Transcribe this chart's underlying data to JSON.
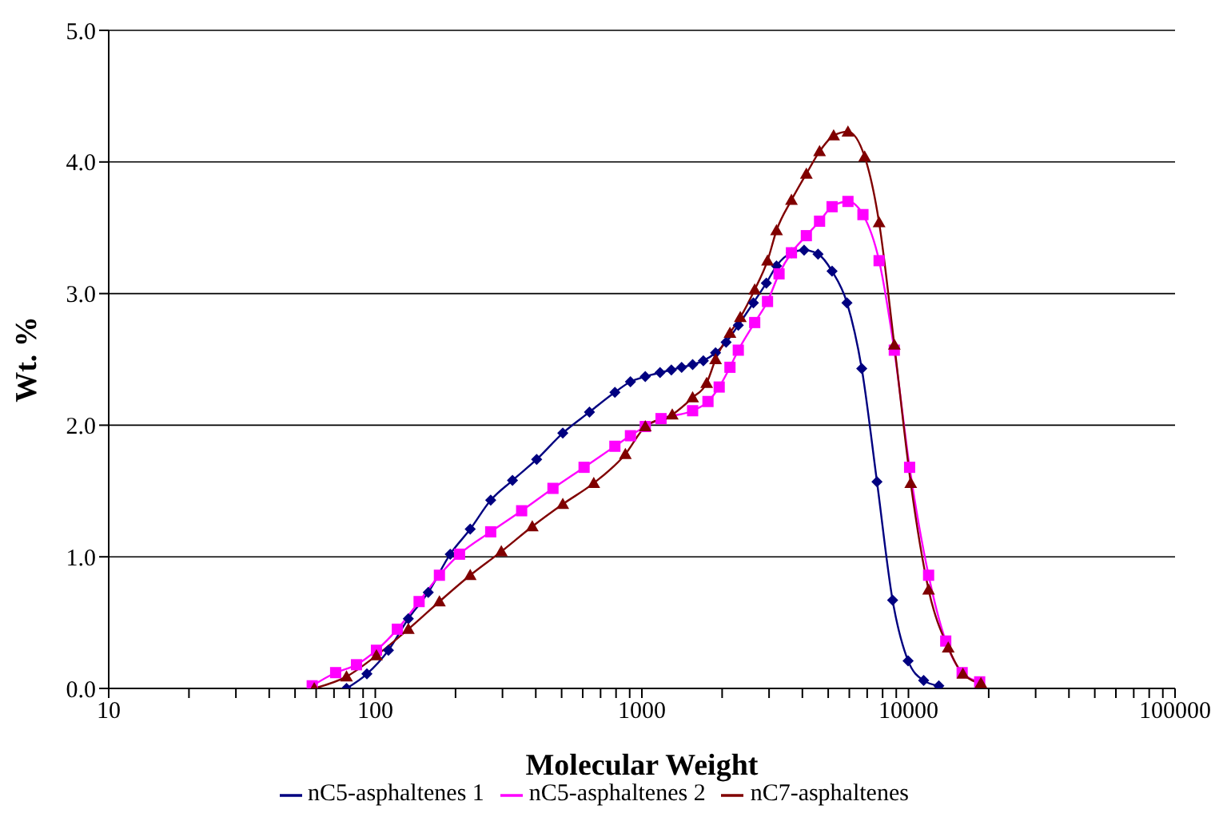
{
  "chart_data": {
    "type": "line",
    "xlabel": "Molecular Weight",
    "ylabel": "Wt. %",
    "log": "x",
    "grid": "y",
    "legend": "bottom",
    "xlim": [
      10,
      100000
    ],
    "xticks": [
      10,
      {
        "value": 20,
        "label": null
      },
      {
        "value": 30,
        "label": null
      },
      {
        "value": 40,
        "label": null
      },
      {
        "value": 50,
        "label": null
      },
      {
        "value": 60,
        "label": null
      },
      {
        "value": 70,
        "label": null
      },
      {
        "value": 80,
        "label": null
      },
      {
        "value": 90,
        "label": null
      },
      100,
      {
        "value": 200,
        "label": null
      },
      {
        "value": 300,
        "label": null
      },
      {
        "value": 400,
        "label": null
      },
      {
        "value": 500,
        "label": null
      },
      {
        "value": 600,
        "label": null
      },
      {
        "value": 700,
        "label": null
      },
      {
        "value": 800,
        "label": null
      },
      {
        "value": 900,
        "label": null
      },
      1000,
      {
        "value": 2000,
        "label": null
      },
      {
        "value": 3000,
        "label": null
      },
      {
        "value": 4000,
        "label": null
      },
      {
        "value": 5000,
        "label": null
      },
      {
        "value": 6000,
        "label": null
      },
      {
        "value": 7000,
        "label": null
      },
      {
        "value": 8000,
        "label": null
      },
      {
        "value": 9000,
        "label": null
      },
      10000,
      {
        "value": 20000,
        "label": null
      },
      {
        "value": 30000,
        "label": null
      },
      {
        "value": 40000,
        "label": null
      },
      {
        "value": 50000,
        "label": null
      },
      {
        "value": 60000,
        "label": null
      },
      {
        "value": 70000,
        "label": null
      },
      {
        "value": 80000,
        "label": null
      },
      {
        "value": 90000,
        "label": null
      },
      100000
    ],
    "ylim": [
      0,
      5
    ],
    "yticks": [
      {
        "value": 0,
        "label": "0.0"
      },
      {
        "value": 1,
        "label": "1.0"
      },
      {
        "value": 2,
        "label": "2.0"
      },
      {
        "value": 3,
        "label": "3.0"
      },
      {
        "value": 4,
        "label": "4.0"
      },
      {
        "value": 5,
        "label": "5.0"
      }
    ],
    "series": [
      {
        "name": "nC5-asphaltenes 1",
        "color": "#000080",
        "marker": "diamond",
        "x": [
          78,
          93,
          112,
          133,
          158,
          191,
          227,
          271,
          327,
          403,
          505,
          636,
          792,
          906,
          1030,
          1170,
          1290,
          1410,
          1550,
          1700,
          1890,
          2070,
          2300,
          2620,
          2930,
          3200,
          3640,
          4060,
          4580,
          5170,
          5880,
          6680,
          7620,
          8720,
          9970,
          11400,
          13000
        ],
        "values": [
          0,
          0.11,
          0.29,
          0.53,
          0.73,
          1.02,
          1.21,
          1.43,
          1.58,
          1.74,
          1.94,
          2.1,
          2.25,
          2.33,
          2.37,
          2.4,
          2.42,
          2.44,
          2.46,
          2.49,
          2.55,
          2.63,
          2.76,
          2.93,
          3.08,
          3.21,
          3.31,
          3.33,
          3.3,
          3.17,
          2.93,
          2.43,
          1.57,
          0.67,
          0.21,
          0.06,
          0.02
        ]
      },
      {
        "name": "nC5-asphaltenes 2",
        "color": "#ff00ff",
        "marker": "square",
        "x": [
          58,
          71,
          85,
          101,
          121,
          146,
          174,
          207,
          271,
          354,
          464,
          607,
          792,
          906,
          1030,
          1180,
          1550,
          1770,
          1950,
          2140,
          2300,
          2650,
          2960,
          3270,
          3640,
          4140,
          4640,
          5170,
          5930,
          6750,
          7760,
          8850,
          10100,
          11900,
          13800,
          15900,
          18500
        ],
        "values": [
          0.02,
          0.12,
          0.18,
          0.29,
          0.45,
          0.66,
          0.86,
          1.02,
          1.19,
          1.35,
          1.52,
          1.68,
          1.84,
          1.92,
          1.99,
          2.05,
          2.11,
          2.18,
          2.29,
          2.44,
          2.57,
          2.78,
          2.94,
          3.15,
          3.31,
          3.44,
          3.55,
          3.66,
          3.7,
          3.6,
          3.25,
          2.57,
          1.68,
          0.86,
          0.36,
          0.12,
          0.05
        ]
      },
      {
        "name": "nC7-asphaltenes",
        "color": "#800000",
        "marker": "triangle",
        "x": [
          59,
          78,
          101,
          133,
          174,
          227,
          297,
          388,
          505,
          660,
          867,
          1030,
          1300,
          1550,
          1750,
          1890,
          2140,
          2340,
          2650,
          2960,
          3200,
          3640,
          4140,
          4640,
          5240,
          5930,
          6850,
          7760,
          8850,
          10200,
          11900,
          14100,
          16000,
          18700
        ],
        "values": [
          0,
          0.09,
          0.25,
          0.45,
          0.66,
          0.86,
          1.04,
          1.23,
          1.4,
          1.56,
          1.78,
          1.99,
          2.08,
          2.21,
          2.32,
          2.5,
          2.7,
          2.82,
          3.03,
          3.25,
          3.48,
          3.71,
          3.91,
          4.08,
          4.2,
          4.23,
          4.04,
          3.54,
          2.61,
          1.56,
          0.75,
          0.31,
          0.11,
          0.04
        ]
      }
    ]
  }
}
